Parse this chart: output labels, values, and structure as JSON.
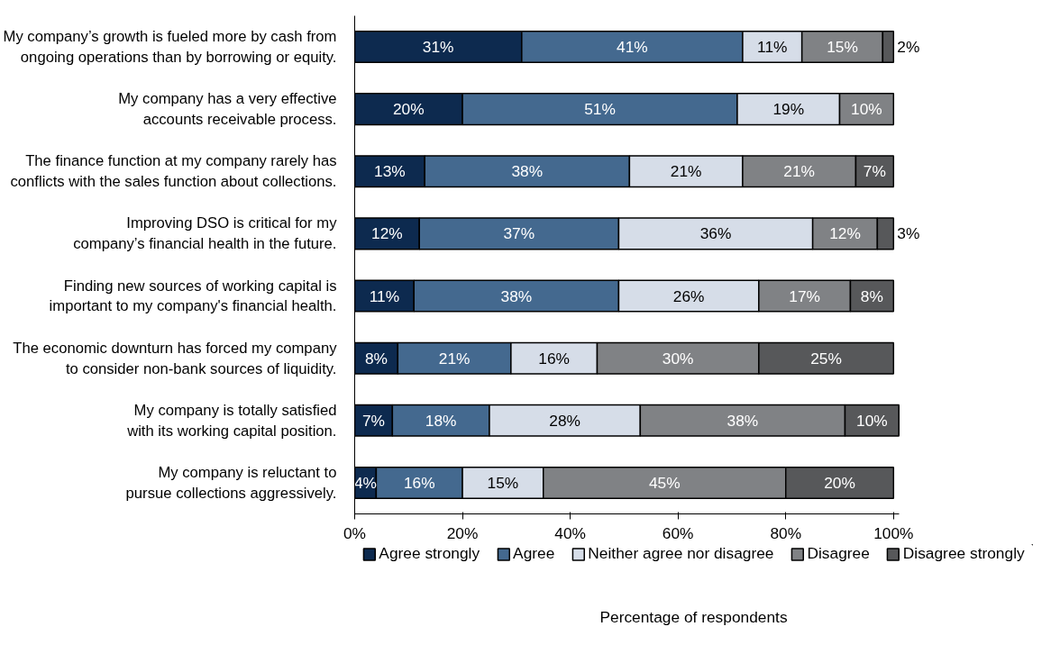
{
  "chart_data": {
    "type": "bar",
    "orientation": "horizontal",
    "stacked": true,
    "categories": [
      "My company’s growth is fueled more by cash from ongoing operations than by borrowing or equity.",
      "My company has a very effective accounts receivable process.",
      "The finance function at my company rarely has conflicts with the sales function about collections.",
      "Improving DSO is critical for my company’s financial health in the future.",
      "Finding new sources of working capital is important to my company's financial health.",
      "The economic downturn has forced my company to consider non-bank sources of liquidity.",
      "My company is totally satisfied with its working capital position.",
      "My company is reluctant to pursue collections aggressively."
    ],
    "series": [
      {
        "name": "Agree strongly",
        "color": "#0d2a4f",
        "values": [
          31,
          20,
          13,
          12,
          11,
          8,
          7,
          4
        ],
        "value_labels": [
          "31%",
          "20%",
          "13%",
          "12%",
          "11%",
          "8%",
          "7%",
          "4%"
        ]
      },
      {
        "name": "Agree",
        "color": "#44698f",
        "values": [
          41,
          51,
          38,
          37,
          38,
          21,
          18,
          16
        ],
        "value_labels": [
          "41%",
          "51%",
          "38%",
          "37%",
          "38%",
          "21%",
          "18%",
          "16%"
        ]
      },
      {
        "name": "Neither agree nor disagree",
        "color": "#d6dde8",
        "values": [
          11,
          19,
          21,
          36,
          26,
          16,
          28,
          15
        ],
        "value_labels": [
          "11%",
          "19%",
          "21%",
          "36%",
          "26%",
          "16%",
          "28%",
          "15%"
        ]
      },
      {
        "name": "Disagree",
        "color": "#808285",
        "values": [
          15,
          10,
          21,
          12,
          17,
          30,
          38,
          45
        ],
        "value_labels": [
          "15%",
          "10%",
          "21%",
          "12%",
          "17%",
          "30%",
          "38%",
          "45%"
        ]
      },
      {
        "name": "Disagree strongly",
        "color": "#57585a",
        "values": [
          2,
          null,
          7,
          3,
          8,
          25,
          10,
          20
        ],
        "value_labels": [
          "2%",
          null,
          "7%",
          "3%",
          "8%",
          "25%",
          "10%",
          "20%"
        ]
      }
    ],
    "xlim": [
      0,
      101
    ],
    "xticks": [
      {
        "value": 0,
        "label": "0%"
      },
      {
        "value": 20,
        "label": "20%"
      },
      {
        "value": 40,
        "label": "40%"
      },
      {
        "value": 60,
        "label": "60%"
      },
      {
        "value": 80,
        "label": "80%"
      },
      {
        "value": 100,
        "label": "100%"
      }
    ],
    "xlabel": "Percentage of respondents",
    "legend": "bottom",
    "grid": false
  }
}
